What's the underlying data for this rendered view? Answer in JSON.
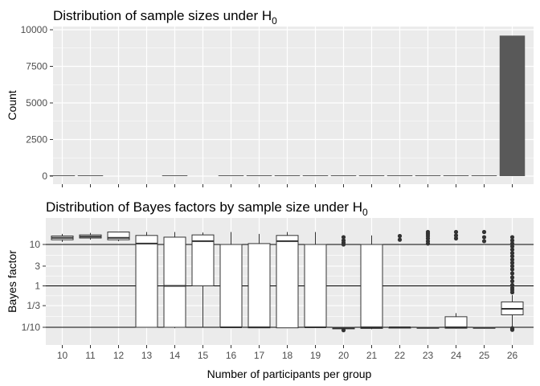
{
  "chart_data": [
    {
      "type": "bar",
      "title": "Distribution of sample sizes under H",
      "title_subscript": "0",
      "xlabel": "",
      "ylabel": "Count",
      "ylim": [
        0,
        10000
      ],
      "yticks": [
        0,
        2500,
        5000,
        7500,
        10000
      ],
      "ytick_labels": [
        "0",
        "2500",
        "5000",
        "7500",
        "10000"
      ],
      "categories": [
        "10",
        "11",
        "12",
        "13",
        "14",
        "15",
        "16",
        "17",
        "18",
        "19",
        "20",
        "21",
        "22",
        "23",
        "24",
        "25",
        "26"
      ],
      "values": [
        8,
        6,
        0,
        0,
        5,
        0,
        6,
        7,
        9,
        8,
        7,
        6,
        6,
        5,
        5,
        4,
        9600
      ],
      "grid": true,
      "colors": {
        "bar": "#595959",
        "panel_bg": "#ebebeb",
        "grid": "#ffffff"
      }
    },
    {
      "type": "box",
      "title": "Distribution of Bayes factors by sample size under H",
      "title_subscript": "0",
      "xlabel": "Number of participants per group",
      "ylabel": "Bayes factor",
      "scale": "log",
      "ylim": [
        0.045,
        28
      ],
      "yticks": [
        0.1,
        0.3333,
        1,
        3,
        10
      ],
      "ytick_labels": [
        "1/10",
        "1/3",
        "1",
        "3",
        "10"
      ],
      "reference_lines": [
        0.1,
        1,
        10
      ],
      "grid": true,
      "categories": [
        "10",
        "11",
        "12",
        "13",
        "14",
        "15",
        "16",
        "17",
        "18",
        "19",
        "20",
        "21",
        "22",
        "23",
        "24",
        "25",
        "26"
      ],
      "boxes": [
        {
          "group": "10",
          "low": 11.5,
          "q1": 13.0,
          "median": 14.5,
          "q3": 16.0,
          "high": 18.0,
          "outliers": []
        },
        {
          "group": "11",
          "low": 13.0,
          "q1": 14.3,
          "median": 15.5,
          "q3": 17.0,
          "high": 19.0,
          "outliers": []
        },
        {
          "group": "12",
          "low": 12.0,
          "q1": 13.0,
          "median": 14.5,
          "q3": 20.0,
          "high": 20.0,
          "outliers": []
        },
        {
          "group": "13",
          "low": 0.1,
          "q1": 0.1,
          "median": 10.5,
          "q3": 16.5,
          "high": 20.0,
          "outliers": []
        },
        {
          "group": "14",
          "low": 0.095,
          "q1": 0.1,
          "median": 1.0,
          "q3": 15.0,
          "high": 20.0,
          "outliers": []
        },
        {
          "group": "15",
          "low": 0.1,
          "q1": 1.0,
          "median": 12.0,
          "q3": 17.0,
          "high": 19.5,
          "outliers": []
        },
        {
          "group": "16",
          "low": 0.095,
          "q1": 0.1,
          "median": 0.1,
          "q3": 10.0,
          "high": 20.0,
          "outliers": []
        },
        {
          "group": "17",
          "low": 0.095,
          "q1": 0.097,
          "median": 0.1,
          "q3": 10.5,
          "high": 18.0,
          "outliers": []
        },
        {
          "group": "18",
          "low": 0.095,
          "q1": 0.097,
          "median": 12.0,
          "q3": 16.5,
          "high": 20.0,
          "outliers": []
        },
        {
          "group": "19",
          "low": 0.1,
          "q1": 0.1,
          "median": 0.1,
          "q3": 10.0,
          "high": 20.0,
          "outliers": []
        },
        {
          "group": "20",
          "low": 0.09,
          "q1": 0.092,
          "median": 0.095,
          "q3": 0.1,
          "high": 0.1,
          "outliers": [
            10,
            11,
            12.5,
            15,
            0.085
          ]
        },
        {
          "group": "21",
          "low": 0.09,
          "q1": 0.094,
          "median": 0.1,
          "q3": 10.0,
          "high": 16.5,
          "outliers": []
        },
        {
          "group": "22",
          "low": 0.095,
          "q1": 0.097,
          "median": 0.1,
          "q3": 0.1,
          "high": 0.1,
          "outliers": [
            13,
            16
          ]
        },
        {
          "group": "23",
          "low": 0.093,
          "q1": 0.095,
          "median": 0.097,
          "q3": 0.1,
          "high": 0.1,
          "outliers": [
            10.5,
            12,
            14,
            16,
            18,
            20
          ]
        },
        {
          "group": "24",
          "low": 0.093,
          "q1": 0.095,
          "median": 0.1,
          "q3": 0.18,
          "high": 0.22,
          "outliers": [
            14,
            16.5,
            20
          ]
        },
        {
          "group": "25",
          "low": 0.093,
          "q1": 0.095,
          "median": 0.097,
          "q3": 0.1,
          "high": 0.1,
          "outliers": [
            12,
            15,
            20
          ]
        },
        {
          "group": "26",
          "low": 0.1,
          "q1": 0.2,
          "median": 0.28,
          "q3": 0.41,
          "high": 0.6,
          "outliers": [
            0.7,
            0.8,
            0.9,
            1.05,
            1.3,
            1.6,
            2.0,
            2.5,
            3.0,
            3.6,
            4.3,
            5.2,
            6.2,
            7.5,
            9.0,
            10.5,
            12.5,
            15.0,
            0.095,
            0.09,
            0.087
          ]
        }
      ],
      "colors": {
        "box_fill": "#ffffff",
        "box_stroke": "#333333",
        "outlier": "#333333",
        "reference_line": "#000000",
        "panel_bg": "#ebebeb",
        "grid": "#ffffff"
      }
    }
  ]
}
